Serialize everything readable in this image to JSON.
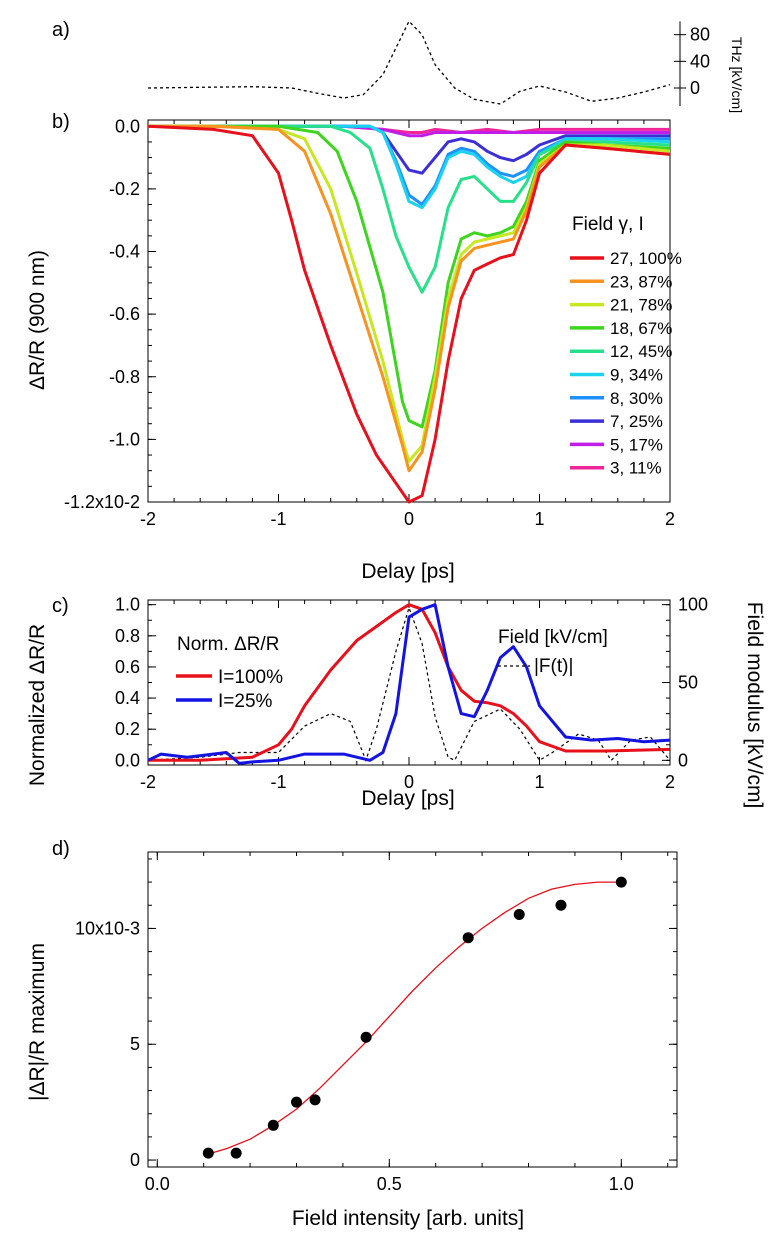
{
  "chart_data": [
    {
      "panel": "a)",
      "type": "line",
      "ylabel": "THz [kV/cm]",
      "yticks": [
        "80",
        "40",
        "0"
      ],
      "ylim": [
        -30,
        105
      ],
      "xlim": [
        -2,
        2
      ],
      "series": [
        {
          "name": "",
          "color": "#000000",
          "dash": true,
          "x": [
            -2,
            -1.6,
            -1.2,
            -0.9,
            -0.7,
            -0.5,
            -0.35,
            -0.2,
            -0.1,
            0,
            0.1,
            0.2,
            0.35,
            0.5,
            0.7,
            0.85,
            1.0,
            1.2,
            1.4,
            1.6,
            1.8,
            2.0
          ],
          "y": [
            0,
            1,
            2,
            0,
            -8,
            -15,
            -10,
            20,
            60,
            100,
            80,
            35,
            0,
            -17,
            -24,
            -5,
            3,
            -6,
            -20,
            -15,
            -6,
            5
          ]
        }
      ]
    },
    {
      "panel": "b)",
      "type": "line",
      "xlabel": "Delay [ps]",
      "ylabel": "ΔR/R (900 nm)",
      "xlim": [
        -2,
        2
      ],
      "ylim": [
        -1.2,
        0.02
      ],
      "xticks": [
        "-2",
        "-1",
        "0",
        "1",
        "2"
      ],
      "yticks": [
        "0.0",
        "-0.2",
        "-0.4",
        "-0.6",
        "-0.8",
        "-1.0",
        "-1.2x10-2"
      ],
      "legend_title": "Field γ, I",
      "legend_position": "right",
      "series": [
        {
          "name": "27, 100%",
          "color": "#e8101a",
          "x": [
            -2,
            -1.5,
            -1.2,
            -1.0,
            -0.9,
            -0.8,
            -0.6,
            -0.4,
            -0.25,
            -0.1,
            0,
            0.1,
            0.2,
            0.3,
            0.4,
            0.5,
            0.6,
            0.7,
            0.8,
            0.9,
            1.0,
            1.2,
            1.5,
            2.0
          ],
          "y": [
            0.0,
            -0.01,
            -0.03,
            -0.15,
            -0.3,
            -0.46,
            -0.7,
            -0.92,
            -1.05,
            -1.14,
            -1.2,
            -1.18,
            -1.0,
            -0.75,
            -0.55,
            -0.46,
            -0.44,
            -0.42,
            -0.41,
            -0.3,
            -0.15,
            -0.06,
            -0.07,
            -0.09
          ]
        },
        {
          "name": "23, 87%",
          "color": "#f7931e",
          "x": [
            -2,
            -1.5,
            -1.0,
            -0.8,
            -0.6,
            -0.4,
            -0.2,
            -0.05,
            0,
            0.1,
            0.2,
            0.3,
            0.4,
            0.5,
            0.6,
            0.7,
            0.8,
            0.9,
            1.0,
            1.2,
            1.5,
            2.0
          ],
          "y": [
            0.0,
            0.0,
            -0.01,
            -0.08,
            -0.28,
            -0.54,
            -0.8,
            -1.02,
            -1.1,
            -1.04,
            -0.84,
            -0.58,
            -0.43,
            -0.39,
            -0.38,
            -0.37,
            -0.36,
            -0.27,
            -0.13,
            -0.06,
            -0.07,
            -0.09
          ]
        },
        {
          "name": "21, 78%",
          "color": "#c7e820",
          "x": [
            -2,
            -1.5,
            -1.0,
            -0.8,
            -0.6,
            -0.4,
            -0.2,
            -0.05,
            0,
            0.1,
            0.2,
            0.3,
            0.4,
            0.5,
            0.6,
            0.7,
            0.8,
            0.9,
            1.0,
            1.2,
            1.5,
            2.0
          ],
          "y": [
            0.0,
            0.0,
            -0.01,
            -0.04,
            -0.2,
            -0.47,
            -0.75,
            -1.0,
            -1.07,
            -1.02,
            -0.8,
            -0.55,
            -0.41,
            -0.37,
            -0.36,
            -0.35,
            -0.34,
            -0.26,
            -0.12,
            -0.06,
            -0.06,
            -0.08
          ]
        },
        {
          "name": "18, 67%",
          "color": "#3ed51e",
          "x": [
            -2,
            -1.5,
            -1.0,
            -0.7,
            -0.55,
            -0.4,
            -0.2,
            -0.05,
            0.0,
            0.1,
            0.2,
            0.3,
            0.4,
            0.5,
            0.6,
            0.7,
            0.8,
            0.9,
            1.0,
            1.2,
            1.5,
            2.0
          ],
          "y": [
            0.0,
            0.0,
            0.0,
            -0.02,
            -0.08,
            -0.24,
            -0.53,
            -0.88,
            -0.94,
            -0.96,
            -0.78,
            -0.5,
            -0.36,
            -0.34,
            -0.35,
            -0.34,
            -0.32,
            -0.24,
            -0.11,
            -0.05,
            -0.06,
            -0.07
          ]
        },
        {
          "name": "12, 45%",
          "color": "#27e08a",
          "x": [
            -2,
            -1.5,
            -1.0,
            -0.6,
            -0.45,
            -0.3,
            -0.2,
            -0.1,
            0.0,
            0.1,
            0.2,
            0.3,
            0.4,
            0.5,
            0.6,
            0.7,
            0.8,
            0.9,
            1.0,
            1.2,
            1.5,
            2.0
          ],
          "y": [
            0.0,
            0.0,
            0.0,
            0.0,
            -0.02,
            -0.07,
            -0.2,
            -0.35,
            -0.45,
            -0.53,
            -0.45,
            -0.26,
            -0.17,
            -0.16,
            -0.2,
            -0.24,
            -0.24,
            -0.18,
            -0.09,
            -0.05,
            -0.05,
            -0.06
          ]
        },
        {
          "name": "9, 34%",
          "color": "#1ad3f0",
          "x": [
            -2,
            -1.5,
            -1.0,
            -0.3,
            -0.2,
            -0.1,
            0.0,
            0.1,
            0.2,
            0.3,
            0.4,
            0.5,
            0.6,
            0.7,
            0.8,
            0.9,
            1.0,
            1.2,
            1.5,
            2.0
          ],
          "y": [
            0.0,
            0.0,
            0.0,
            0.0,
            -0.02,
            -0.12,
            -0.24,
            -0.26,
            -0.2,
            -0.1,
            -0.08,
            -0.09,
            -0.13,
            -0.16,
            -0.18,
            -0.16,
            -0.09,
            -0.04,
            -0.04,
            -0.05
          ]
        },
        {
          "name": "8, 30%",
          "color": "#1e90ff",
          "x": [
            -2,
            -1.5,
            -1.0,
            -0.3,
            -0.2,
            -0.1,
            0.0,
            0.1,
            0.2,
            0.3,
            0.4,
            0.5,
            0.6,
            0.7,
            0.8,
            0.9,
            1.0,
            1.2,
            1.5,
            2.0
          ],
          "y": [
            0.0,
            0.0,
            0.0,
            0.0,
            -0.02,
            -0.11,
            -0.22,
            -0.25,
            -0.19,
            -0.09,
            -0.07,
            -0.08,
            -0.12,
            -0.15,
            -0.16,
            -0.14,
            -0.08,
            -0.04,
            -0.04,
            -0.04
          ]
        },
        {
          "name": "7, 25%",
          "color": "#3b2fd6",
          "x": [
            -2,
            -1.5,
            -1.0,
            -0.3,
            -0.2,
            -0.1,
            0.0,
            0.1,
            0.2,
            0.3,
            0.4,
            0.5,
            0.6,
            0.7,
            0.8,
            0.9,
            1.0,
            1.2,
            1.5,
            2.0
          ],
          "y": [
            0.0,
            0.0,
            0.0,
            0.0,
            -0.02,
            -0.08,
            -0.14,
            -0.15,
            -0.1,
            -0.05,
            -0.04,
            -0.05,
            -0.08,
            -0.1,
            -0.11,
            -0.09,
            -0.06,
            -0.03,
            -0.03,
            -0.03
          ]
        },
        {
          "name": "5, 17%",
          "color": "#c01ee8",
          "x": [
            -2,
            -1.5,
            -1.0,
            -0.5,
            -0.2,
            0.0,
            0.1,
            0.2,
            0.4,
            0.6,
            0.8,
            1.0,
            1.5,
            2.0
          ],
          "y": [
            0.0,
            0.0,
            0.0,
            0.0,
            -0.01,
            -0.03,
            -0.03,
            -0.02,
            -0.02,
            -0.02,
            -0.02,
            -0.02,
            -0.02,
            -0.02
          ]
        },
        {
          "name": "3, 11%",
          "color": "#f0259a",
          "x": [
            -2,
            -1.5,
            -1.0,
            -0.5,
            -0.2,
            0.0,
            0.1,
            0.2,
            0.4,
            0.6,
            0.8,
            1.0,
            1.5,
            2.0
          ],
          "y": [
            0.0,
            0.0,
            0.0,
            0.0,
            -0.01,
            -0.02,
            -0.02,
            -0.01,
            -0.02,
            -0.01,
            -0.02,
            -0.01,
            -0.01,
            -0.01
          ]
        }
      ]
    },
    {
      "panel": "c)",
      "type": "line",
      "xlabel": "Delay [ps]",
      "ylabel": "Normalized ΔR/R",
      "y2label": "Field modulus [kV/cm]",
      "xlim": [
        -2,
        2
      ],
      "ylim": [
        -0.03,
        1.03
      ],
      "y2lim": [
        -3,
        103
      ],
      "xticks": [
        "-2",
        "-1",
        "0",
        "1",
        "2"
      ],
      "yticks": [
        "0.0",
        "0.2",
        "0.4",
        "0.6",
        "0.8",
        "1.0"
      ],
      "y2ticks": [
        "0",
        "50",
        "100"
      ],
      "legend_left_title": "Norm. ΔR/R",
      "legend_right_title": "Field [kV/cm]",
      "legend_position": "top",
      "series": [
        {
          "name": "I=100%",
          "color": "#e8101a",
          "axis": "left",
          "x": [
            -2,
            -1.6,
            -1.2,
            -1.0,
            -0.9,
            -0.8,
            -0.6,
            -0.4,
            -0.25,
            -0.1,
            0,
            0.1,
            0.2,
            0.3,
            0.4,
            0.5,
            0.6,
            0.7,
            0.8,
            0.9,
            1.0,
            1.2,
            1.5,
            2.0
          ],
          "y": [
            0.0,
            0.0,
            0.02,
            0.1,
            0.2,
            0.35,
            0.58,
            0.77,
            0.86,
            0.95,
            1.0,
            0.97,
            0.82,
            0.6,
            0.45,
            0.38,
            0.37,
            0.35,
            0.3,
            0.22,
            0.12,
            0.06,
            0.06,
            0.07
          ]
        },
        {
          "name": "I=25%",
          "color": "#1414e0",
          "axis": "left",
          "x": [
            -2,
            -1.9,
            -1.7,
            -1.4,
            -1.3,
            -1.2,
            -1.0,
            -0.8,
            -0.5,
            -0.3,
            -0.2,
            -0.1,
            0.0,
            0.1,
            0.2,
            0.3,
            0.4,
            0.5,
            0.6,
            0.7,
            0.8,
            0.9,
            1.0,
            1.2,
            1.4,
            1.6,
            1.8,
            2.0
          ],
          "y": [
            0.0,
            0.04,
            0.02,
            0.05,
            -0.02,
            -0.01,
            0.0,
            0.04,
            0.04,
            0.0,
            0.05,
            0.3,
            0.92,
            0.97,
            1.0,
            0.6,
            0.3,
            0.28,
            0.45,
            0.66,
            0.73,
            0.6,
            0.35,
            0.15,
            0.13,
            0.14,
            0.12,
            0.13
          ]
        },
        {
          "name": "|F(t)|",
          "color": "#000000",
          "dash": true,
          "axis": "right",
          "x": [
            -2,
            -1.6,
            -1.3,
            -1.0,
            -0.8,
            -0.6,
            -0.45,
            -0.33,
            -0.25,
            -0.1,
            0.0,
            0.1,
            0.2,
            0.3,
            0.35,
            0.5,
            0.7,
            0.85,
            1.0,
            1.1,
            1.3,
            1.45,
            1.55,
            1.7,
            1.85,
            2.0
          ],
          "y": [
            0,
            2,
            5,
            5,
            22,
            30,
            25,
            0,
            20,
            70,
            98,
            75,
            28,
            2,
            0,
            25,
            33,
            20,
            0,
            5,
            17,
            13,
            0,
            13,
            15,
            0
          ]
        }
      ]
    },
    {
      "panel": "d)",
      "type": "scatter",
      "xlabel": "Field intensity [arb. units]",
      "ylabel": "|ΔR|/R maximum",
      "xlim": [
        -0.02,
        1.12
      ],
      "ylim": [
        -0.3,
        13.3
      ],
      "xticks": [
        "0.0",
        "0.5",
        "1.0"
      ],
      "yticks": [
        "0",
        "5",
        "10x10-3"
      ],
      "series": [
        {
          "name": "",
          "color": "#000000",
          "x": [
            0.11,
            0.17,
            0.25,
            0.3,
            0.34,
            0.45,
            0.67,
            0.78,
            0.87,
            1.0
          ],
          "y": [
            0.3,
            0.3,
            1.5,
            2.5,
            2.6,
            5.3,
            9.6,
            10.6,
            11.0,
            12.0
          ]
        },
        {
          "name": "",
          "type": "fit",
          "color": "#e8101a",
          "x": [
            0.1,
            0.15,
            0.2,
            0.25,
            0.3,
            0.35,
            0.4,
            0.45,
            0.5,
            0.55,
            0.6,
            0.65,
            0.7,
            0.75,
            0.8,
            0.85,
            0.9,
            0.95,
            1.0
          ],
          "y": [
            0.2,
            0.5,
            0.9,
            1.5,
            2.2,
            3.1,
            4.1,
            5.1,
            6.2,
            7.3,
            8.3,
            9.2,
            10.0,
            10.7,
            11.3,
            11.7,
            11.9,
            12.0,
            12.0
          ]
        }
      ]
    }
  ]
}
